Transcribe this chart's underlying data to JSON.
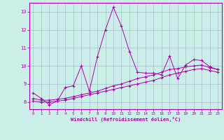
{
  "xlabel": "Windchill (Refroidissement éolien,°C)",
  "xlim": [
    -0.5,
    23.5
  ],
  "ylim": [
    7.6,
    13.5
  ],
  "yticks": [
    8,
    9,
    10,
    11,
    12,
    13
  ],
  "xticks": [
    0,
    1,
    2,
    3,
    4,
    5,
    6,
    7,
    8,
    9,
    10,
    11,
    12,
    13,
    14,
    15,
    16,
    17,
    18,
    19,
    20,
    21,
    22,
    23
  ],
  "bg_color": "#cceee8",
  "line_color": "#aa00aa",
  "grid_color": "#aabbcc",
  "series1_x": [
    0,
    1,
    2,
    3,
    4,
    5,
    6,
    7,
    8,
    9,
    10,
    11,
    12,
    13,
    14,
    15,
    16,
    17,
    18,
    19,
    20,
    21,
    22,
    23
  ],
  "series1_y": [
    8.5,
    8.2,
    7.85,
    8.05,
    8.8,
    8.9,
    10.0,
    8.6,
    10.5,
    12.0,
    13.25,
    12.2,
    10.8,
    9.65,
    9.6,
    9.6,
    9.5,
    10.55,
    9.3,
    10.05,
    10.35,
    10.3,
    9.95,
    9.8
  ],
  "series2_x": [
    0,
    1,
    2,
    3,
    4,
    5,
    6,
    7,
    8,
    9,
    10,
    11,
    12,
    13,
    14,
    15,
    16,
    17,
    18,
    19,
    20,
    21,
    22,
    23
  ],
  "series2_y": [
    8.2,
    8.1,
    8.1,
    8.15,
    8.2,
    8.3,
    8.4,
    8.5,
    8.6,
    8.75,
    8.9,
    9.0,
    9.15,
    9.3,
    9.4,
    9.5,
    9.65,
    9.8,
    9.85,
    9.95,
    10.0,
    10.05,
    9.9,
    9.8
  ],
  "series3_x": [
    0,
    1,
    2,
    3,
    4,
    5,
    6,
    7,
    8,
    9,
    10,
    11,
    12,
    13,
    14,
    15,
    16,
    17,
    18,
    19,
    20,
    21,
    22,
    23
  ],
  "series3_y": [
    8.05,
    8.0,
    8.0,
    8.05,
    8.1,
    8.2,
    8.3,
    8.4,
    8.5,
    8.6,
    8.7,
    8.8,
    8.9,
    9.0,
    9.1,
    9.2,
    9.35,
    9.5,
    9.6,
    9.7,
    9.8,
    9.85,
    9.75,
    9.65
  ]
}
